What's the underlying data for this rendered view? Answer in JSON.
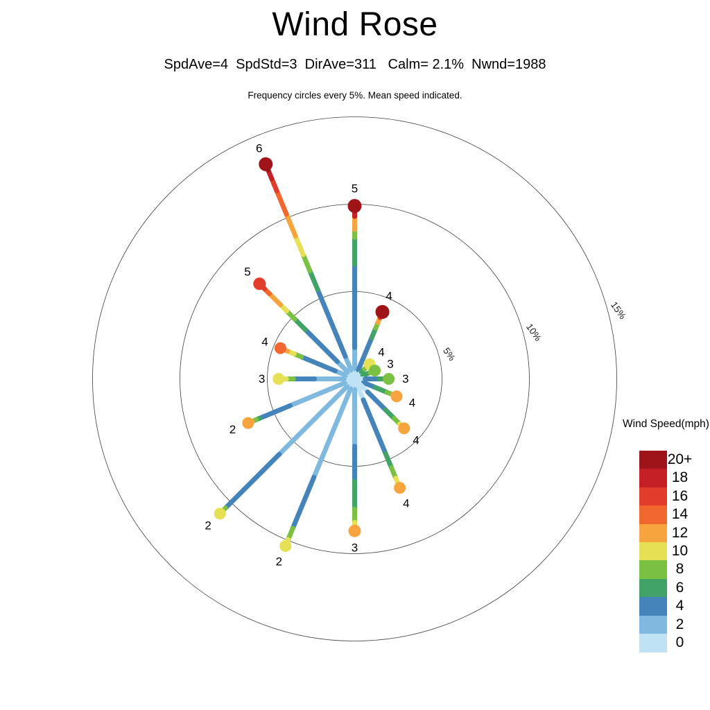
{
  "header": {
    "title": "Wind Rose",
    "subtitle": "SpdAve=4  SpdStd=3  DirAve=311   Calm= 2.1%  Nwnd=1988",
    "caption": "Frequency circles every 5%. Mean speed indicated."
  },
  "legend": {
    "title": "Wind Speed(mph)",
    "entries": [
      {
        "label": "20+",
        "color": "#9f1418"
      },
      {
        "label": "18",
        "color": "#c42025"
      },
      {
        "label": "16",
        "color": "#e23c2c"
      },
      {
        "label": "14",
        "color": "#f1672f"
      },
      {
        "label": "12",
        "color": "#f7a43e"
      },
      {
        "label": "10",
        "color": "#e6e054"
      },
      {
        "label": "8",
        "color": "#7ac143"
      },
      {
        "label": "6",
        "color": "#41a366"
      },
      {
        "label": "4",
        "color": "#4584bb"
      },
      {
        "label": "2",
        "color": "#7fb9e0"
      },
      {
        "label": "0",
        "color": "#bfe2f5"
      }
    ]
  },
  "chart_data": {
    "type": "windrose",
    "title": "Wind Rose",
    "units": "mph",
    "stats": {
      "SpdAve": 4,
      "SpdStd": 3,
      "DirAve": 311,
      "Calm_pct": 2.1,
      "Nwnd": 1988
    },
    "frequency_circle_note": "Frequency circles every 5%. Mean speed indicated.",
    "frequency_circles": [
      {
        "pct": 5,
        "label": "5%"
      },
      {
        "pct": 10,
        "label": "10%"
      },
      {
        "pct": 15,
        "label": "15%"
      }
    ],
    "speed_bin_colors": {
      "0": "#bfe2f5",
      "2": "#7fb9e0",
      "4": "#4584bb",
      "6": "#41a366",
      "8": "#7ac143",
      "10": "#e6e054",
      "12": "#f7a43e",
      "14": "#f1672f",
      "16": "#e23c2c",
      "18": "#c42025",
      "20+": "#9f1418"
    },
    "directions": [
      {
        "name": "N",
        "azimuth_deg": 0,
        "mean_speed": 5,
        "frequency_pct": 9.9,
        "tip_radius_px": 10,
        "segments": [
          [
            "0",
            0,
            0.55
          ],
          [
            "2",
            0.55,
            1.8
          ],
          [
            "4",
            1.8,
            6.55
          ],
          [
            "6",
            6.55,
            8.1
          ],
          [
            "8",
            8.1,
            8.55
          ],
          [
            "12",
            8.55,
            9.3
          ],
          [
            "18",
            9.3,
            9.65
          ],
          [
            "20+",
            9.65,
            9.9
          ]
        ]
      },
      {
        "name": "NNE",
        "azimuth_deg": 22.5,
        "mean_speed": 4,
        "frequency_pct": 4.15,
        "tip_radius_px": 10,
        "segments": [
          [
            "0",
            0,
            0.55
          ],
          [
            "4",
            0.55,
            2.55
          ],
          [
            "6",
            2.55,
            3.15
          ],
          [
            "8",
            3.15,
            3.5
          ],
          [
            "12",
            3.5,
            3.8
          ],
          [
            "16",
            3.8,
            3.95
          ],
          [
            "20+",
            3.95,
            4.15
          ]
        ]
      },
      {
        "name": "NE",
        "azimuth_deg": 45,
        "mean_speed": 4,
        "frequency_pct": 1.2,
        "tip_radius_px": 8.5,
        "segments": [
          [
            "0",
            0,
            0.55
          ],
          [
            "6",
            0.55,
            0.8
          ],
          [
            "8",
            0.8,
            1.0
          ],
          [
            "10",
            1.0,
            1.2
          ]
        ]
      },
      {
        "name": "ENE",
        "azimuth_deg": 67.5,
        "mean_speed": 3,
        "frequency_pct": 1.25,
        "tip_radius_px": 8.5,
        "segments": [
          [
            "0",
            0,
            0.5
          ],
          [
            "6",
            0.5,
            0.95
          ],
          [
            "8",
            0.95,
            1.25
          ]
        ]
      },
      {
        "name": "E",
        "azimuth_deg": 90,
        "mean_speed": 3,
        "frequency_pct": 1.95,
        "tip_radius_px": 8.5,
        "segments": [
          [
            "0",
            0,
            0.6
          ],
          [
            "4",
            0.6,
            1.4
          ],
          [
            "6",
            1.4,
            1.75
          ],
          [
            "8",
            1.75,
            1.95
          ]
        ]
      },
      {
        "name": "ESE",
        "azimuth_deg": 112.5,
        "mean_speed": 4,
        "frequency_pct": 2.6,
        "tip_radius_px": 8.5,
        "segments": [
          [
            "0",
            0,
            0.55
          ],
          [
            "4",
            0.55,
            1.3
          ],
          [
            "6",
            1.3,
            2.0
          ],
          [
            "8",
            2.0,
            2.35
          ],
          [
            "12",
            2.35,
            2.6
          ]
        ]
      },
      {
        "name": "SE",
        "azimuth_deg": 135,
        "mean_speed": 4,
        "frequency_pct": 4.0,
        "tip_radius_px": 8.5,
        "segments": [
          [
            "0",
            0,
            1.05
          ],
          [
            "4",
            1.05,
            2.5
          ],
          [
            "6",
            2.5,
            3.2
          ],
          [
            "8",
            3.2,
            3.65
          ],
          [
            "10",
            3.65,
            3.8
          ],
          [
            "12",
            3.8,
            4.0
          ]
        ]
      },
      {
        "name": "SSE",
        "azimuth_deg": 157.5,
        "mean_speed": 4,
        "frequency_pct": 6.75,
        "tip_radius_px": 8.5,
        "segments": [
          [
            "0",
            0,
            1.3
          ],
          [
            "4",
            1.3,
            4.6
          ],
          [
            "6",
            4.6,
            5.5
          ],
          [
            "8",
            5.5,
            6.15
          ],
          [
            "10",
            6.15,
            6.55
          ],
          [
            "12",
            6.55,
            6.75
          ]
        ]
      },
      {
        "name": "S",
        "azimuth_deg": 180,
        "mean_speed": 3,
        "frequency_pct": 8.7,
        "tip_radius_px": 9,
        "segments": [
          [
            "0",
            0,
            0.6
          ],
          [
            "2",
            0.6,
            3.85
          ],
          [
            "4",
            3.85,
            5.85
          ],
          [
            "6",
            5.85,
            7.45
          ],
          [
            "8",
            7.45,
            8.2
          ],
          [
            "10",
            8.2,
            8.55
          ],
          [
            "12",
            8.55,
            8.7
          ]
        ]
      },
      {
        "name": "SSW",
        "azimuth_deg": 202.5,
        "mean_speed": 2,
        "frequency_pct": 10.35,
        "tip_radius_px": 8.5,
        "segments": [
          [
            "0",
            0,
            0.6
          ],
          [
            "2",
            0.6,
            6.1
          ],
          [
            "4",
            6.1,
            9.25
          ],
          [
            "8",
            9.25,
            9.95
          ],
          [
            "10",
            9.95,
            10.35
          ]
        ]
      },
      {
        "name": "SW",
        "azimuth_deg": 225,
        "mean_speed": 2,
        "frequency_pct": 10.9,
        "tip_radius_px": 8.5,
        "segments": [
          [
            "0",
            0,
            0.6
          ],
          [
            "2",
            0.6,
            6.1
          ],
          [
            "4",
            6.1,
            10.45
          ],
          [
            "8",
            10.45,
            10.7
          ],
          [
            "10",
            10.7,
            10.9
          ]
        ]
      },
      {
        "name": "WSW",
        "azimuth_deg": 247.5,
        "mean_speed": 2,
        "frequency_pct": 6.6,
        "tip_radius_px": 8.5,
        "segments": [
          [
            "0",
            0,
            0.6
          ],
          [
            "2",
            0.6,
            4.0
          ],
          [
            "4",
            4.0,
            5.9
          ],
          [
            "6",
            5.9,
            6.1
          ],
          [
            "8",
            6.1,
            6.35
          ],
          [
            "12",
            6.35,
            6.6
          ]
        ]
      },
      {
        "name": "W",
        "azimuth_deg": 270,
        "mean_speed": 3,
        "frequency_pct": 4.35,
        "tip_radius_px": 8.5,
        "segments": [
          [
            "0",
            0,
            0.6
          ],
          [
            "2",
            0.6,
            2.3
          ],
          [
            "4",
            2.3,
            3.5
          ],
          [
            "8",
            3.5,
            3.9
          ],
          [
            "10",
            3.9,
            4.35
          ]
        ]
      },
      {
        "name": "WNW",
        "azimuth_deg": 292.5,
        "mean_speed": 4,
        "frequency_pct": 4.6,
        "tip_radius_px": 8.5,
        "segments": [
          [
            "0",
            0,
            0.55
          ],
          [
            "2",
            0.55,
            1.2
          ],
          [
            "4",
            1.2,
            3.3
          ],
          [
            "8",
            3.3,
            3.75
          ],
          [
            "10",
            3.75,
            4.15
          ],
          [
            "12",
            4.15,
            4.4
          ],
          [
            "14",
            4.4,
            4.6
          ]
        ]
      },
      {
        "name": "NW",
        "azimuth_deg": 315,
        "mean_speed": 5,
        "frequency_pct": 7.7,
        "tip_radius_px": 9,
        "segments": [
          [
            "0",
            0,
            0.55
          ],
          [
            "2",
            0.55,
            1.4
          ],
          [
            "4",
            1.4,
            4.0
          ],
          [
            "6",
            4.0,
            4.85
          ],
          [
            "8",
            4.85,
            5.5
          ],
          [
            "10",
            5.5,
            6.0
          ],
          [
            "12",
            6.0,
            6.9
          ],
          [
            "14",
            6.9,
            7.3
          ],
          [
            "16",
            7.3,
            7.7
          ]
        ]
      },
      {
        "name": "NNW",
        "azimuth_deg": 337.5,
        "mean_speed": 6,
        "frequency_pct": 13.3,
        "tip_radius_px": 10,
        "segments": [
          [
            "0",
            0,
            0.55
          ],
          [
            "2",
            0.55,
            1.4
          ],
          [
            "4",
            1.4,
            5.55
          ],
          [
            "6",
            5.55,
            6.7
          ],
          [
            "8",
            6.7,
            7.7
          ],
          [
            "10",
            7.7,
            8.85
          ],
          [
            "12",
            8.85,
            10.2
          ],
          [
            "14",
            10.2,
            11.65
          ],
          [
            "16",
            11.65,
            12.4
          ],
          [
            "18",
            12.4,
            12.95
          ],
          [
            "20+",
            12.95,
            13.3
          ]
        ]
      }
    ]
  }
}
